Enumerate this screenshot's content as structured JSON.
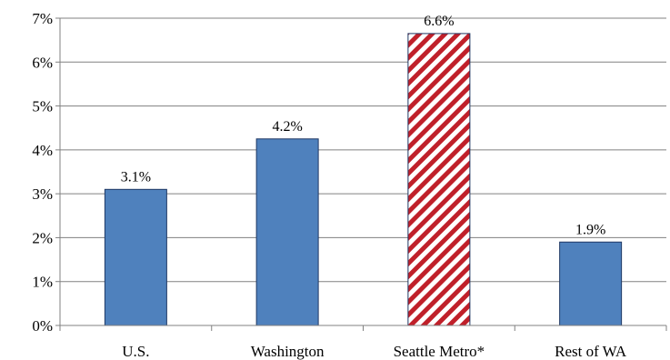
{
  "chart_data": {
    "type": "bar",
    "categories": [
      "U.S.",
      "Washington",
      "Seattle Metro*",
      "Rest of WA"
    ],
    "values": [
      3.1,
      4.25,
      6.65,
      1.9
    ],
    "data_labels": [
      "3.1%",
      "4.2%",
      "6.6%",
      "1.9%"
    ],
    "ylim": [
      0,
      7
    ],
    "yticks": [
      0,
      1,
      2,
      3,
      4,
      5,
      6,
      7
    ],
    "ytick_labels": [
      "0%",
      "1%",
      "2%",
      "3%",
      "4%",
      "5%",
      "6%",
      "7%"
    ],
    "title": "",
    "xlabel": "",
    "ylabel": "",
    "grid": true,
    "legend": "none",
    "colors": {
      "bar_fill": "#4F81BD",
      "bar_stroke": "#1F3864",
      "highlight_stripe": "#C0202A",
      "highlight_background": "#ffffff",
      "grid": "#808080",
      "axis": "#808080"
    },
    "highlight_category": "Seattle Metro*",
    "highlight_pattern": "diagonal-stripes"
  }
}
